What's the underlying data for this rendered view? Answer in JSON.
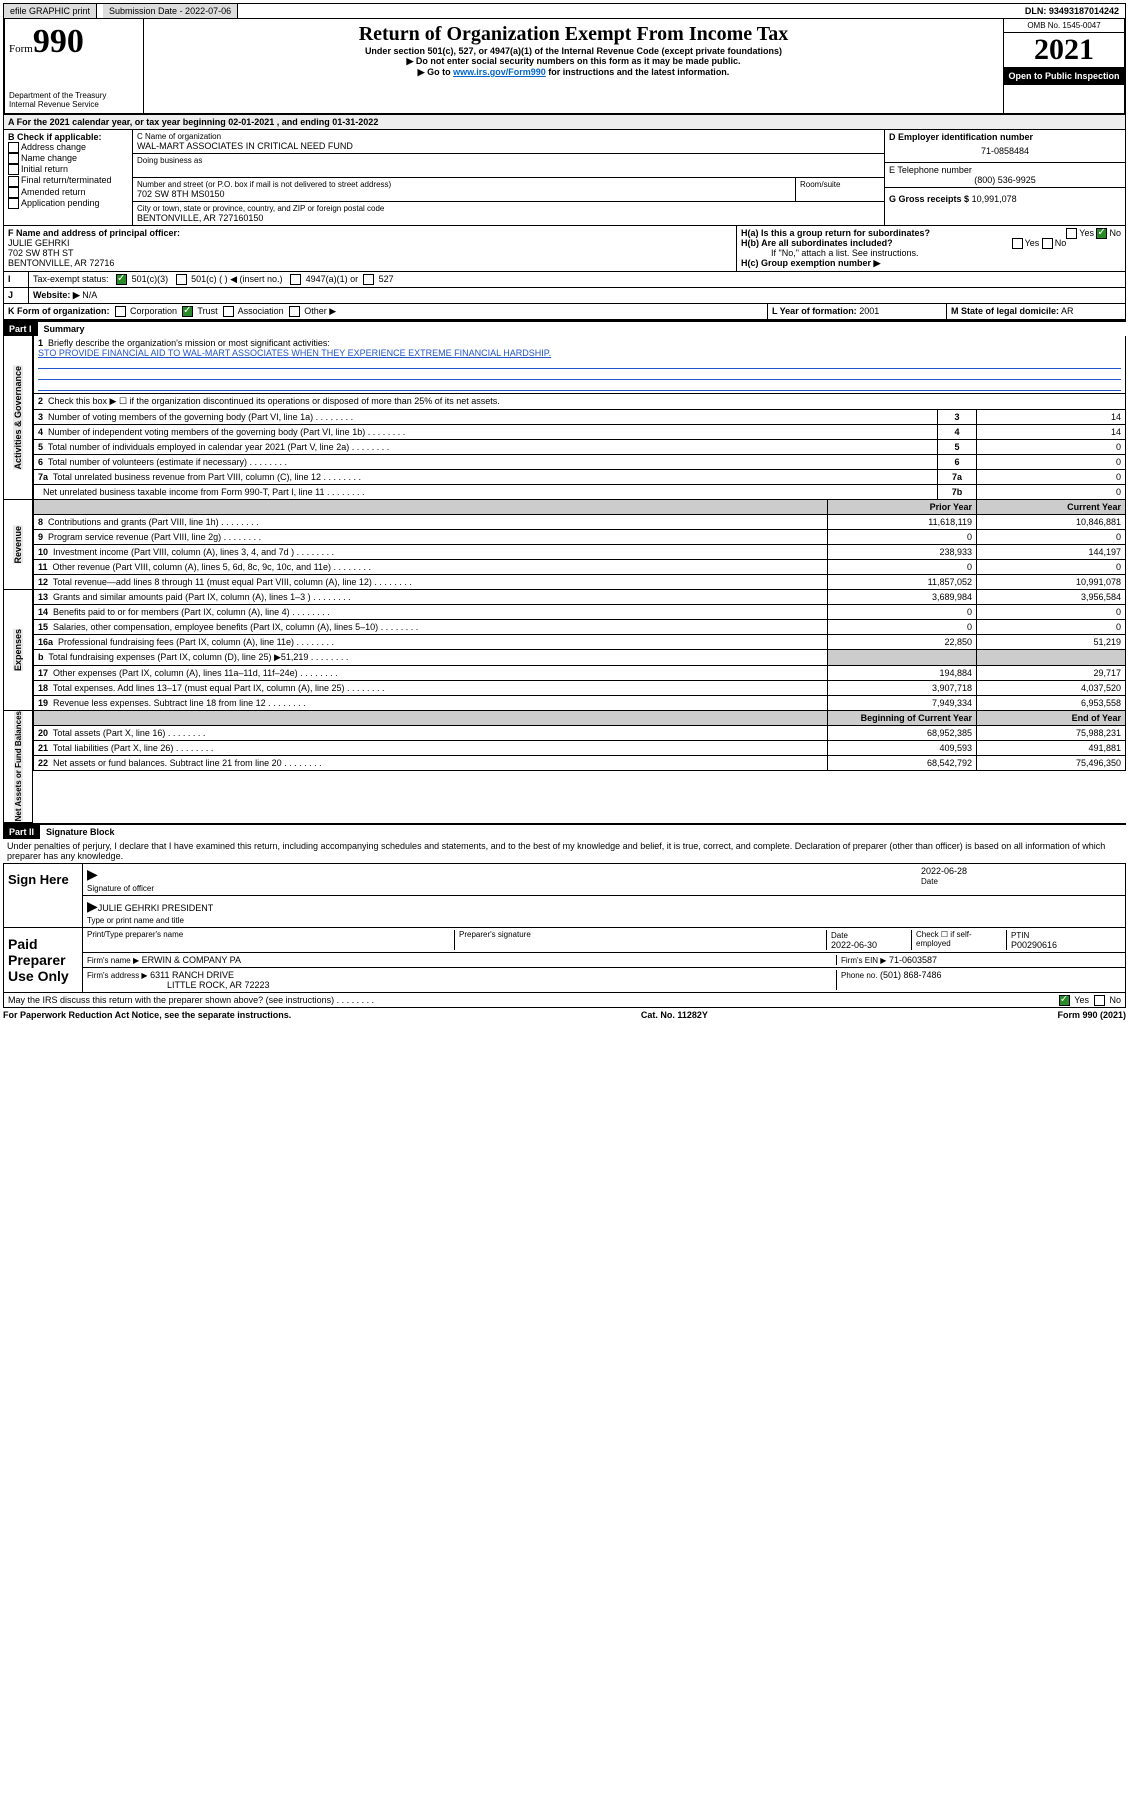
{
  "topbar": {
    "efile": "efile GRAPHIC print",
    "subdate_label": "Submission Date - 2022-07-06",
    "dln": "DLN: 93493187014242"
  },
  "header": {
    "form_word": "Form",
    "form_num": "990",
    "dept": "Department of the Treasury",
    "irs": "Internal Revenue Service",
    "title": "Return of Organization Exempt From Income Tax",
    "sub1": "Under section 501(c), 527, or 4947(a)(1) of the Internal Revenue Code (except private foundations)",
    "sub2": "▶ Do not enter social security numbers on this form as it may be made public.",
    "sub3a": "▶ Go to ",
    "sub3link": "www.irs.gov/Form990",
    "sub3b": " for instructions and the latest information.",
    "omb": "OMB No. 1545-0047",
    "year": "2021",
    "open": "Open to Public Inspection"
  },
  "blockA": {
    "a_line": "A For the 2021 calendar year, or tax year beginning 02-01-2021   , and ending 01-31-2022",
    "b_label": "B Check if applicable:",
    "b_items": [
      "Address change",
      "Name change",
      "Initial return",
      "Final return/terminated",
      "Amended return",
      "Application pending"
    ],
    "c_label": "C Name of organization",
    "c_name": "WAL-MART ASSOCIATES IN CRITICAL NEED FUND",
    "dba_label": "Doing business as",
    "addr_label": "Number and street (or P.O. box if mail is not delivered to street address)",
    "addr": "702 SW 8TH MS0150",
    "room_label": "Room/suite",
    "city_label": "City or town, state or province, country, and ZIP or foreign postal code",
    "city": "BENTONVILLE, AR  727160150",
    "d_label": "D Employer identification number",
    "d_val": "71-0858484",
    "e_label": "E Telephone number",
    "e_val": "(800) 536-9925",
    "g_label": "G Gross receipts $",
    "g_val": "10,991,078",
    "f_label": "F Name and address of principal officer:",
    "f_name": "JULIE GEHRKI",
    "f_addr1": "702 SW 8TH ST",
    "f_addr2": "BENTONVILLE, AR  72716",
    "ha_label": "H(a) Is this a group return for subordinates?",
    "hb_label": "H(b) Are all subordinates included?",
    "h_note": "If \"No,\" attach a list. See instructions.",
    "hc_label": "H(c) Group exemption number ▶",
    "yes": "Yes",
    "no": "No",
    "i_label": "I",
    "tax_status": "Tax-exempt status:",
    "i_501c3": "501(c)(3)",
    "i_501c": "501(c) (  ) ◀ (insert no.)",
    "i_4947": "4947(a)(1) or",
    "i_527": "527",
    "j_label": "J",
    "website_label": "Website: ▶",
    "website": "N/A",
    "k_label": "K Form of organization:",
    "k_corp": "Corporation",
    "k_trust": "Trust",
    "k_assoc": "Association",
    "k_other": "Other ▶",
    "l_label": "L Year of formation:",
    "l_val": "2001",
    "m_label": "M State of legal domicile:",
    "m_val": "AR"
  },
  "part1": {
    "head": "Part I",
    "title": "Summary",
    "side_activities": "Activities & Governance",
    "side_revenue": "Revenue",
    "side_expenses": "Expenses",
    "side_netassets": "Net Assets or Fund Balances",
    "l1": "Briefly describe the organization's mission or most significant activities:",
    "l1_text": "STO PROVIDE FINANCIAL AID TO WAL-MART ASSOCIATES WHEN THEY EXPERIENCE EXTREME FINANCIAL HARDSHIP.",
    "l2": "Check this box ▶ ☐  if the organization discontinued its operations or disposed of more than 25% of its net assets.",
    "prior_year": "Prior Year",
    "current_year": "Current Year",
    "begin_year": "Beginning of Current Year",
    "end_year": "End of Year",
    "rows_gov": [
      {
        "n": "3",
        "t": "Number of voting members of the governing body (Part VI, line 1a)",
        "code": "3",
        "v": "14"
      },
      {
        "n": "4",
        "t": "Number of independent voting members of the governing body (Part VI, line 1b)",
        "code": "4",
        "v": "14"
      },
      {
        "n": "5",
        "t": "Total number of individuals employed in calendar year 2021 (Part V, line 2a)",
        "code": "5",
        "v": "0"
      },
      {
        "n": "6",
        "t": "Total number of volunteers (estimate if necessary)",
        "code": "6",
        "v": "0"
      },
      {
        "n": "7a",
        "t": "Total unrelated business revenue from Part VIII, column (C), line 12",
        "code": "7a",
        "v": "0"
      },
      {
        "n": "",
        "t": "Net unrelated business taxable income from Form 990-T, Part I, line 11",
        "code": "7b",
        "v": "0"
      }
    ],
    "rows_rev": [
      {
        "n": "8",
        "t": "Contributions and grants (Part VIII, line 1h)",
        "p": "11,618,119",
        "c": "10,846,881"
      },
      {
        "n": "9",
        "t": "Program service revenue (Part VIII, line 2g)",
        "p": "0",
        "c": "0"
      },
      {
        "n": "10",
        "t": "Investment income (Part VIII, column (A), lines 3, 4, and 7d )",
        "p": "238,933",
        "c": "144,197"
      },
      {
        "n": "11",
        "t": "Other revenue (Part VIII, column (A), lines 5, 6d, 8c, 9c, 10c, and 11e)",
        "p": "0",
        "c": "0"
      },
      {
        "n": "12",
        "t": "Total revenue—add lines 8 through 11 (must equal Part VIII, column (A), line 12)",
        "p": "11,857,052",
        "c": "10,991,078"
      }
    ],
    "rows_exp": [
      {
        "n": "13",
        "t": "Grants and similar amounts paid (Part IX, column (A), lines 1–3 )",
        "p": "3,689,984",
        "c": "3,956,584"
      },
      {
        "n": "14",
        "t": "Benefits paid to or for members (Part IX, column (A), line 4)",
        "p": "0",
        "c": "0"
      },
      {
        "n": "15",
        "t": "Salaries, other compensation, employee benefits (Part IX, column (A), lines 5–10)",
        "p": "0",
        "c": "0"
      },
      {
        "n": "16a",
        "t": "Professional fundraising fees (Part IX, column (A), line 11e)",
        "p": "22,850",
        "c": "51,219"
      },
      {
        "n": "b",
        "t": "Total fundraising expenses (Part IX, column (D), line 25) ▶51,219",
        "p": "",
        "c": ""
      },
      {
        "n": "17",
        "t": "Other expenses (Part IX, column (A), lines 11a–11d, 11f–24e)",
        "p": "194,884",
        "c": "29,717"
      },
      {
        "n": "18",
        "t": "Total expenses. Add lines 13–17 (must equal Part IX, column (A), line 25)",
        "p": "3,907,718",
        "c": "4,037,520"
      },
      {
        "n": "19",
        "t": "Revenue less expenses. Subtract line 18 from line 12",
        "p": "7,949,334",
        "c": "6,953,558"
      }
    ],
    "rows_net": [
      {
        "n": "20",
        "t": "Total assets (Part X, line 16)",
        "p": "68,952,385",
        "c": "75,988,231"
      },
      {
        "n": "21",
        "t": "Total liabilities (Part X, line 26)",
        "p": "409,593",
        "c": "491,881"
      },
      {
        "n": "22",
        "t": "Net assets or fund balances. Subtract line 21 from line 20",
        "p": "68,542,792",
        "c": "75,496,350"
      }
    ]
  },
  "part2": {
    "head": "Part II",
    "title": "Signature Block",
    "decl": "Under penalties of perjury, I declare that I have examined this return, including accompanying schedules and statements, and to the best of my knowledge and belief, it is true, correct, and complete. Declaration of preparer (other than officer) is based on all information of which preparer has any knowledge.",
    "sign_here": "Sign Here",
    "sig_officer": "Signature of officer",
    "sig_date": "2022-06-28",
    "date_label": "Date",
    "officer_name": "JULIE GEHRKI PRESIDENT",
    "type_name": "Type or print name and title",
    "paid_prep": "Paid Preparer Use Only",
    "pt_name_label": "Print/Type preparer's name",
    "pt_sig_label": "Preparer's signature",
    "pt_date_label": "Date",
    "pt_date": "2022-06-30",
    "pt_check_label": "Check ☐ if self-employed",
    "ptin_label": "PTIN",
    "ptin": "P00290616",
    "firm_name_label": "Firm's name    ▶",
    "firm_name": "ERWIN & COMPANY PA",
    "firm_ein_label": "Firm's EIN ▶",
    "firm_ein": "71-0603587",
    "firm_addr_label": "Firm's address ▶",
    "firm_addr1": "6311 RANCH DRIVE",
    "firm_addr2": "LITTLE ROCK, AR  72223",
    "phone_label": "Phone no.",
    "phone": "(501) 868-7486",
    "may_irs": "May the IRS discuss this return with the preparer shown above? (see instructions)"
  },
  "footer": {
    "pra": "For Paperwork Reduction Act Notice, see the separate instructions.",
    "cat": "Cat. No. 11282Y",
    "form": "Form 990 (2021)"
  }
}
